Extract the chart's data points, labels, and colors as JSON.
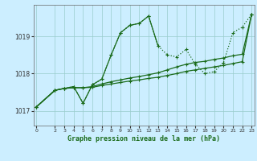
{
  "xlabel": "Graphe pression niveau de la mer (hPa)",
  "background_color": "#cceeff",
  "grid_color": "#99cccc",
  "line_color": "#1a6b1a",
  "ylim": [
    1016.6,
    1019.85
  ],
  "xlim": [
    -0.3,
    23.3
  ],
  "yticks": [
    1017,
    1018,
    1019
  ],
  "xticks": [
    0,
    2,
    3,
    4,
    5,
    6,
    7,
    8,
    9,
    10,
    11,
    12,
    13,
    14,
    15,
    16,
    17,
    18,
    19,
    20,
    21,
    22,
    23
  ],
  "series": [
    {
      "x": [
        0,
        2,
        3,
        4,
        5,
        6,
        7,
        8,
        9,
        10,
        11,
        12,
        13,
        14,
        15,
        16,
        17,
        18,
        19,
        20,
        21,
        22,
        23
      ],
      "y": [
        1017.1,
        1017.55,
        1017.6,
        1017.65,
        1017.2,
        1017.7,
        1017.85,
        1018.5,
        1019.1,
        1019.3,
        1019.35,
        1019.55,
        1018.75,
        1018.5,
        1018.45,
        1018.65,
        1018.25,
        1018.0,
        1018.05,
        1018.3,
        1019.1,
        1019.25,
        1019.6
      ],
      "linestyle": "dotted",
      "linewidth": 0.9
    },
    {
      "x": [
        0,
        2,
        3,
        4,
        5,
        6,
        7,
        8,
        9,
        10,
        11,
        12,
        13
      ],
      "y": [
        1017.1,
        1017.55,
        1017.6,
        1017.65,
        1017.2,
        1017.7,
        1017.85,
        1018.5,
        1019.1,
        1019.3,
        1019.35,
        1019.55,
        1018.75
      ],
      "linestyle": "solid",
      "linewidth": 0.9
    },
    {
      "x": [
        0,
        2,
        3,
        4,
        5,
        6,
        7,
        8,
        9,
        10,
        11,
        12,
        13,
        14,
        15,
        16,
        17,
        18,
        19,
        20,
        21,
        22,
        23
      ],
      "y": [
        1017.1,
        1017.55,
        1017.6,
        1017.62,
        1017.62,
        1017.65,
        1017.72,
        1017.78,
        1017.83,
        1017.88,
        1017.92,
        1017.97,
        1018.02,
        1018.1,
        1018.18,
        1018.25,
        1018.3,
        1018.33,
        1018.38,
        1018.42,
        1018.48,
        1018.52,
        1019.6
      ],
      "linestyle": "solid",
      "linewidth": 0.9
    },
    {
      "x": [
        0,
        2,
        3,
        4,
        5,
        6,
        7,
        8,
        9,
        10,
        11,
        12,
        13,
        14,
        15,
        16,
        17,
        18,
        19,
        20,
        21,
        22,
        23
      ],
      "y": [
        1017.1,
        1017.55,
        1017.6,
        1017.62,
        1017.62,
        1017.63,
        1017.68,
        1017.72,
        1017.76,
        1017.8,
        1017.83,
        1017.87,
        1017.9,
        1017.95,
        1018.0,
        1018.06,
        1018.1,
        1018.14,
        1018.18,
        1018.22,
        1018.27,
        1018.32,
        1019.6
      ],
      "linestyle": "solid",
      "linewidth": 0.9
    }
  ]
}
